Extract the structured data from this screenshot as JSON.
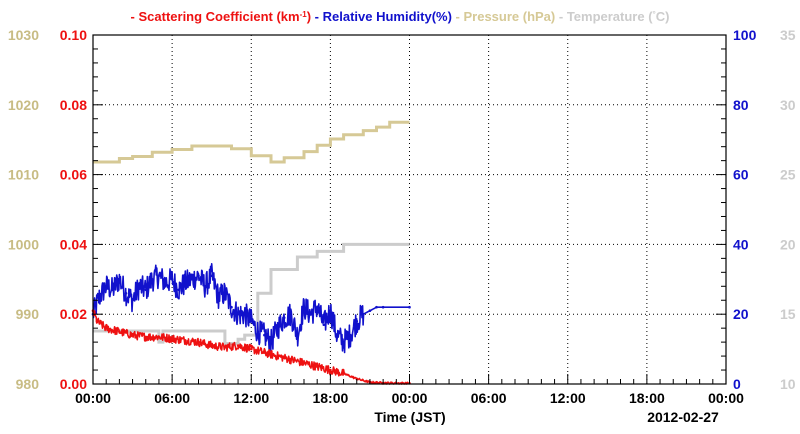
{
  "chart_data": {
    "type": "line",
    "legend": [
      {
        "label": "Scattering Coefficient (km",
        "sup": "-1",
        "suffix": ")",
        "color": "#ee1111"
      },
      {
        "label": "Relative Humidity(%)",
        "color": "#1111cc"
      },
      {
        "label": "Pressure (hPa)",
        "color": "#d6c996"
      },
      {
        "label": "Temperature (",
        "deg": "°",
        "suffix": "C)",
        "color": "#cccccc"
      }
    ],
    "xlabel": "Time (JST)",
    "date_label": "2012-02-27",
    "x_ticks": [
      "00:00",
      "06:00",
      "12:00",
      "18:00",
      "00:00",
      "06:00",
      "12:00",
      "18:00",
      "00:00"
    ],
    "xlim_hours": [
      0,
      48
    ],
    "axes": {
      "pressure": {
        "label_color": "#c8bc84",
        "ylim": [
          980,
          1030
        ],
        "ticks": [
          "980",
          "990",
          "1000",
          "1010",
          "1020",
          "1030"
        ]
      },
      "scattering": {
        "label_color": "#ee1111",
        "ylim": [
          0,
          0.1
        ],
        "ticks": [
          "0.00",
          "0.02",
          "0.04",
          "0.06",
          "0.08",
          "0.10"
        ]
      },
      "humidity": {
        "label_color": "#1111cc",
        "ylim": [
          0,
          100
        ],
        "ticks": [
          "0",
          "20",
          "40",
          "60",
          "80",
          "100"
        ]
      },
      "temperature": {
        "label_color": "#cccccc",
        "ylim": [
          10,
          35
        ],
        "ticks": [
          "10",
          "15",
          "20",
          "25",
          "30",
          "35"
        ]
      }
    },
    "series": [
      {
        "name": "Relative Humidity(%)",
        "color": "#1111cc",
        "axis": "humidity",
        "style": "noisy",
        "points": [
          [
            0,
            20
          ],
          [
            0.5,
            25
          ],
          [
            1,
            28
          ],
          [
            1.5,
            27
          ],
          [
            2,
            30
          ],
          [
            2.5,
            26
          ],
          [
            3,
            24
          ],
          [
            3.5,
            28
          ],
          [
            4,
            27
          ],
          [
            4.5,
            30
          ],
          [
            5,
            31
          ],
          [
            5.5,
            29
          ],
          [
            6,
            30
          ],
          [
            6.5,
            27
          ],
          [
            7,
            29
          ],
          [
            7.5,
            30
          ],
          [
            8,
            31
          ],
          [
            8.5,
            28
          ],
          [
            9,
            31
          ],
          [
            9.5,
            25
          ],
          [
            10,
            26
          ],
          [
            10.5,
            22
          ],
          [
            11,
            20
          ],
          [
            11.5,
            20
          ],
          [
            12,
            18
          ],
          [
            12.5,
            15
          ],
          [
            13,
            14
          ],
          [
            13.5,
            12
          ],
          [
            14,
            16
          ],
          [
            14.5,
            19
          ],
          [
            15,
            20
          ],
          [
            15.5,
            14
          ],
          [
            16,
            22
          ],
          [
            16.5,
            20
          ],
          [
            17,
            22
          ],
          [
            17.5,
            17
          ],
          [
            18,
            21
          ],
          [
            18.5,
            14
          ],
          [
            19,
            12
          ],
          [
            19.5,
            14
          ],
          [
            20,
            18
          ],
          [
            20.5,
            20
          ],
          [
            21,
            21
          ],
          [
            21.5,
            22
          ],
          [
            22,
            22
          ],
          [
            24,
            22
          ]
        ]
      },
      {
        "name": "Scattering Coefficient (km-1)",
        "color": "#ee1111",
        "axis": "scattering",
        "style": "noisy",
        "points": [
          [
            0,
            0.021
          ],
          [
            0.3,
            0.018
          ],
          [
            1,
            0.016
          ],
          [
            2,
            0.015
          ],
          [
            3,
            0.014
          ],
          [
            4,
            0.0135
          ],
          [
            5,
            0.0135
          ],
          [
            6,
            0.013
          ],
          [
            7,
            0.0125
          ],
          [
            8,
            0.012
          ],
          [
            9,
            0.011
          ],
          [
            10,
            0.0105
          ],
          [
            11,
            0.011
          ],
          [
            12,
            0.01
          ],
          [
            13,
            0.009
          ],
          [
            14,
            0.008
          ],
          [
            15,
            0.007
          ],
          [
            16,
            0.006
          ],
          [
            17,
            0.005
          ],
          [
            18,
            0.004
          ],
          [
            19,
            0.003
          ],
          [
            20,
            0.0015
          ],
          [
            21,
            0.0005
          ],
          [
            22,
            0.0003
          ],
          [
            24,
            0.0002
          ]
        ]
      },
      {
        "name": "Pressure (hPa)",
        "color": "#d6c996",
        "axis": "pressure",
        "style": "step",
        "points": [
          [
            0,
            1011.8
          ],
          [
            2,
            1012.3
          ],
          [
            3,
            1012.6
          ],
          [
            4.5,
            1013.2
          ],
          [
            6,
            1013.6
          ],
          [
            7.5,
            1014.1
          ],
          [
            10.5,
            1013.7
          ],
          [
            12,
            1012.7
          ],
          [
            13.5,
            1011.8
          ],
          [
            14.5,
            1012.4
          ],
          [
            16,
            1013.3
          ],
          [
            17,
            1014.2
          ],
          [
            18,
            1015.1
          ],
          [
            19,
            1015.7
          ],
          [
            20.5,
            1016.3
          ],
          [
            21.5,
            1016.8
          ],
          [
            22.5,
            1017.5
          ],
          [
            24,
            1017.5
          ]
        ]
      },
      {
        "name": "Temperature (C)",
        "color": "#cccccc",
        "axis": "temperature",
        "style": "step",
        "points": [
          [
            0,
            13.8
          ],
          [
            4,
            13.8
          ],
          [
            5,
            13.0
          ],
          [
            5.3,
            13.8
          ],
          [
            10,
            12.9
          ],
          [
            11,
            13.2
          ],
          [
            11.5,
            13.5
          ],
          [
            12.5,
            16.5
          ],
          [
            13.5,
            18.2
          ],
          [
            15.5,
            19.1
          ],
          [
            17,
            19.5
          ],
          [
            19,
            20.0
          ],
          [
            20.5,
            20.0
          ],
          [
            24,
            20.0
          ]
        ]
      }
    ]
  }
}
